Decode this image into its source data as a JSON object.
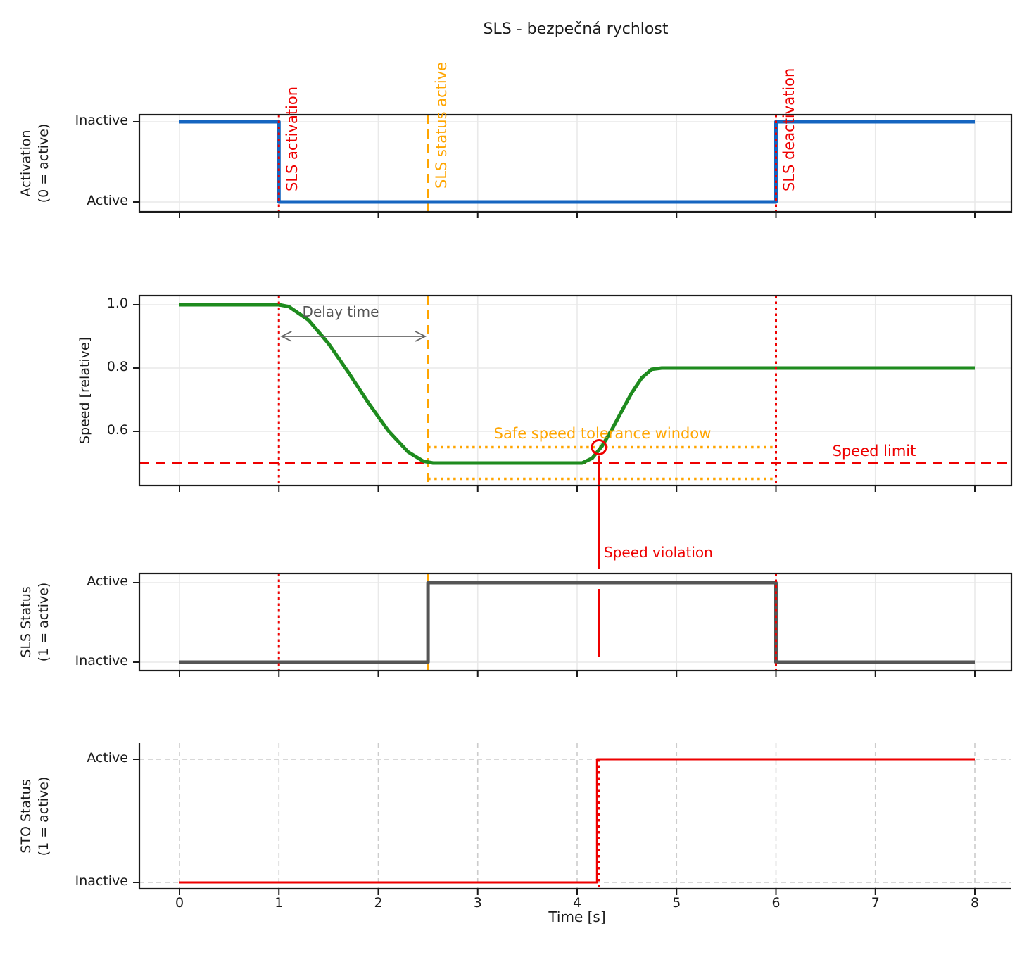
{
  "title": "SLS - bezpečná rychlost",
  "xlabel": "Time [s]",
  "x_tick_labels": [
    "0",
    "1",
    "2",
    "3",
    "4",
    "5",
    "6",
    "7",
    "8"
  ],
  "colors": {
    "activation": "#1565c0",
    "speed": "#1e8b1e",
    "speed_faded": "rgba(30,139,30,0.22)",
    "sls_status": "#555555",
    "sto_status": "#ee0000",
    "red": "#ee0000",
    "orange": "#ffa500",
    "gray": "#555555",
    "grid": "#e9e9e9",
    "grid_dashed": "#cccccc",
    "axis": "#1a1a1a"
  },
  "chart_data": [
    {
      "type": "line",
      "ylabel": "Activation\n(0 = active)",
      "x_range": [
        -0.4,
        8.4
      ],
      "grid": "solid",
      "yticks": [
        {
          "value": 1,
          "label": "Inactive"
        },
        {
          "value": 0,
          "label": "Active"
        }
      ],
      "series": [
        {
          "name": "Activation",
          "color_key": "activation",
          "points": [
            [
              0,
              1
            ],
            [
              1,
              1
            ],
            [
              1,
              0
            ],
            [
              6,
              0
            ],
            [
              6,
              1
            ],
            [
              8,
              1
            ]
          ]
        }
      ]
    },
    {
      "type": "line",
      "ylabel": "Speed [relative]",
      "x_range": [
        -0.4,
        8.4
      ],
      "grid": "solid",
      "yticks": [
        {
          "value": 1.0,
          "label": "1.0"
        },
        {
          "value": 0.8,
          "label": "0.8"
        },
        {
          "value": 0.6,
          "label": "0.6"
        }
      ],
      "series": [
        {
          "name": "Speed",
          "color_key": "speed",
          "points": [
            [
              0,
              1.0
            ],
            [
              1.0,
              1.0
            ],
            [
              1.1,
              0.994
            ],
            [
              1.3,
              0.951
            ],
            [
              1.5,
              0.877
            ],
            [
              1.7,
              0.786
            ],
            [
              1.9,
              0.69
            ],
            [
              2.1,
              0.602
            ],
            [
              2.3,
              0.535
            ],
            [
              2.45,
              0.506
            ],
            [
              2.55,
              0.5
            ],
            [
              4.05,
              0.5
            ],
            [
              4.15,
              0.515
            ],
            [
              4.25,
              0.553
            ],
            [
              4.35,
              0.606
            ],
            [
              4.45,
              0.665
            ],
            [
              4.55,
              0.722
            ],
            [
              4.65,
              0.769
            ],
            [
              4.75,
              0.796
            ],
            [
              4.85,
              0.8
            ],
            [
              8,
              0.8
            ]
          ]
        },
        {
          "name": "Speed faded violation segment",
          "color_key": "speed_faded",
          "points": [
            [
              4.23,
              0.552
            ],
            [
              4.3,
              0.578
            ],
            [
              4.35,
              0.606
            ],
            [
              4.4,
              0.635
            ]
          ]
        }
      ],
      "hlines": [
        {
          "value": 0.5,
          "label": "Speed limit",
          "color_key": "red",
          "style": "dashed",
          "from_t": null,
          "to_t": null
        },
        {
          "value": 0.55,
          "label": "",
          "color_key": "orange",
          "style": "dotted",
          "from_t": 2.5,
          "to_t": 6.0
        },
        {
          "value": 0.45,
          "label": "",
          "color_key": "orange",
          "style": "dotted",
          "from_t": 2.5,
          "to_t": 6.0
        }
      ],
      "annotations": {
        "delay": {
          "text": "Delay time",
          "from_t": 1.0,
          "to_t": 2.5,
          "at_value": 0.9
        },
        "tolerance_label": {
          "text": "Safe speed tolerance window"
        },
        "violation_marker": {
          "t": 4.22,
          "value": 0.55
        },
        "violation_label": {
          "text": "Speed violation",
          "t": 4.22
        }
      }
    },
    {
      "type": "line",
      "ylabel": "SLS Status\n(1 = active)",
      "x_range": [
        -0.4,
        8.4
      ],
      "grid": "solid",
      "yticks": [
        {
          "value": 1,
          "label": "Active"
        },
        {
          "value": 0,
          "label": "Inactive"
        }
      ],
      "series": [
        {
          "name": "SLS Status",
          "color_key": "sls_status",
          "points": [
            [
              0,
              0
            ],
            [
              2.5,
              0
            ],
            [
              2.5,
              1
            ],
            [
              6,
              1
            ],
            [
              6,
              0
            ],
            [
              8,
              0
            ]
          ]
        }
      ]
    },
    {
      "type": "line",
      "ylabel": "STO Status\n(1 = active)",
      "x_range": [
        -0.4,
        8.4
      ],
      "grid": "dashed",
      "yticks": [
        {
          "value": 1,
          "label": "Active"
        },
        {
          "value": 0,
          "label": "Inactive"
        }
      ],
      "series": [
        {
          "name": "STO Status",
          "color_key": "sto_status",
          "points": [
            [
              0,
              0
            ],
            [
              4.2,
              0
            ],
            [
              4.2,
              1
            ],
            [
              8,
              1
            ]
          ]
        }
      ],
      "vline": {
        "t": 4.22,
        "color_key": "red",
        "style": "dotted"
      }
    }
  ],
  "events": [
    {
      "t": 1.0,
      "label": "SLS activation",
      "color_key": "red",
      "style": "dotted",
      "plots": [
        0,
        1,
        2
      ]
    },
    {
      "t": 2.5,
      "label": "SLS status active",
      "color_key": "orange",
      "style": "dashed",
      "plots": [
        0,
        1,
        2
      ]
    },
    {
      "t": 6.0,
      "label": "SLS deactivation",
      "color_key": "red",
      "style": "dotted",
      "plots": [
        0,
        1,
        2
      ]
    }
  ]
}
